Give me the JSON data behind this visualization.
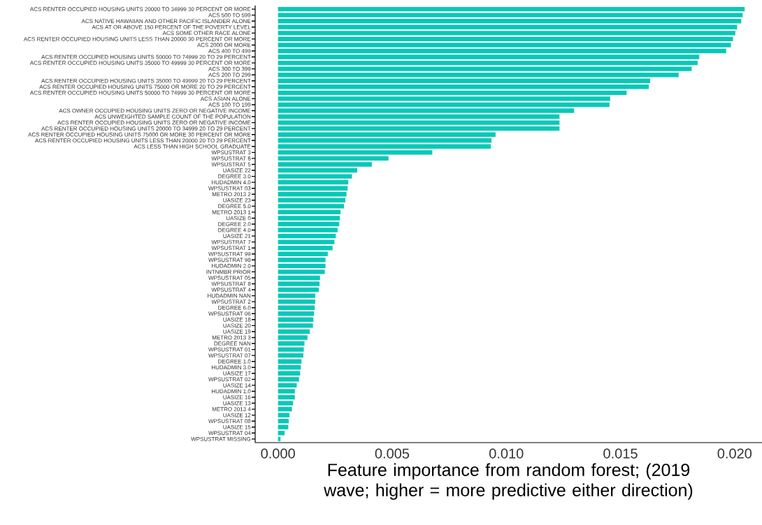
{
  "chart_data": {
    "type": "bar",
    "orientation": "horizontal",
    "xlabel": "Feature importance from random forest; (2019 wave; higher = more predictive either direction)",
    "categories": [
      "ACS RENTER OCCUPIED HOUSING UNITS 20000 TO 34999 30 PERCENT OR MORE",
      "ACS 500 TO 599",
      "ACS NATIVE HAWAIIAN AND OTHER PACIFIC ISLANDER ALONE",
      "ACS AT OR ABOVE 150 PERCENT OF THE POVERTY LEVEL",
      "ACS SOME OTHER RACE ALONE",
      "ACS RENTER OCCUPIED HOUSING UNITS LESS THAN 20000 30 PERCENT OR MORE",
      "ACS 2000 OR MORE",
      "ACS 400 TO 499",
      "ACS RENTER OCCUPIED HOUSING UNITS 50000 TO 74999 20 TO 29 PERCENT",
      "ACS RENTER OCCUPIED HOUSING UNITS 35000 TO 49999 30 PERCENT OR MORE",
      "ACS 300 TO 399",
      "ACS 200 TO 299",
      "ACS RENTER OCCUPIED HOUSING UNITS 35000 TO 49999 20 TO 29 PERCENT",
      "ACS RENTER OCCUPIED HOUSING UNITS 75000 OR MORE 20 TO 29 PERCENT",
      "ACS RENTER OCCUPIED HOUSING UNITS 50000 TO 74999 30 PERCENT OR MORE",
      "ACS ASIAN ALONE",
      "ACS 100 TO 199",
      "ACS OWNER OCCUPIED HOUSING UNITS ZERO OR NEGATIVE INCOME",
      "ACS UNWEIGHTED SAMPLE COUNT OF THE POPULATION",
      "ACS RENTER OCCUPIED HOUSING UNITS ZERO OR NEGATIVE INCOME",
      "ACS RENTER OCCUPIED HOUSING UNITS 20000 TO 34999 20 TO 29 PERCENT",
      "ACS RENTER OCCUPIED HOUSING UNITS 75000 OR MORE 30 PERCENT OR MORE",
      "ACS RENTER OCCUPIED HOUSING UNITS LESS THAN 20000 20 TO 29 PERCENT",
      "ACS LESS THAN HIGH SCHOOL GRADUATE",
      "WPSUSTRAT 3",
      "WPSUSTRAT 6",
      "WPSUSTRAT 5",
      "UASIZE 22",
      "DEGREE 3.0",
      "HUDADMIN 4.0",
      "WPSUSTRAT 03",
      "METRO 2013 2",
      "UASIZE 23",
      "DEGREE 5.0",
      "METRO 2013 1",
      "UASIZE 0",
      "DEGREE 2.0",
      "DEGREE 4.0",
      "UASIZE 21",
      "WPSUSTRAT 7",
      "WPSUSTRAT 1",
      "WPSUSTRAT 99",
      "WPSUSTRAT 98",
      "HUDADMIN 2.0",
      "INTNMBR PRIOR",
      "WPSUSTRAT 05",
      "WPSUSTRAT 8",
      "WPSUSTRAT 4",
      "HUDADMIN NAN",
      "WPSUSTRAT 2",
      "DEGREE 6.0",
      "WPSUSTRAT 06",
      "UASIZE 18",
      "UASIZE 20",
      "UASIZE 19",
      "METRO 2013 3",
      "DEGREE NAN",
      "WPSUSTRAT 01",
      "WPSUSTRAT 07",
      "DEGREE 1.0",
      "HUDADMIN 3.0",
      "UASIZE 17",
      "WPSUSTRAT 02",
      "UASIZE 14",
      "HUDADMIN 1.0",
      "UASIZE 16",
      "UASIZE 13",
      "METRO 2013 4",
      "UASIZE 12",
      "WPSUSTRAT 08",
      "UASIZE 15",
      "WPSUSTRAT 04",
      "WPSUSTRAT MISSING"
    ],
    "values": [
      0.02044,
      0.02035,
      0.02029,
      0.02011,
      0.02003,
      0.01993,
      0.01984,
      0.01963,
      0.01845,
      0.01838,
      0.01812,
      0.01755,
      0.0163,
      0.01624,
      0.01527,
      0.01455,
      0.01452,
      0.01297,
      0.01233,
      0.01233,
      0.01233,
      0.00953,
      0.00935,
      0.00932,
      0.00676,
      0.00484,
      0.00411,
      0.00347,
      0.00324,
      0.00308,
      0.00305,
      0.003,
      0.00295,
      0.00289,
      0.00274,
      0.00271,
      0.00268,
      0.00261,
      0.00253,
      0.00247,
      0.00239,
      0.00218,
      0.00208,
      0.00208,
      0.00205,
      0.00184,
      0.00182,
      0.00179,
      0.00163,
      0.00163,
      0.00161,
      0.00158,
      0.00155,
      0.00153,
      0.00139,
      0.00129,
      0.00116,
      0.00113,
      0.00111,
      0.00103,
      0.001,
      0.00097,
      0.00092,
      0.00082,
      0.00074,
      0.00074,
      0.00066,
      0.00061,
      0.0005,
      0.00047,
      0.00045,
      0.00029,
      0.00011
    ],
    "color": "#06c9b8",
    "xlim": [
      -0.001,
      0.0212
    ],
    "xticks": [
      {
        "value": 0,
        "label": "0.000"
      },
      {
        "value": 0.005,
        "label": "0.005"
      },
      {
        "value": 0.01,
        "label": "0.010"
      },
      {
        "value": 0.015,
        "label": "0.015"
      },
      {
        "value": 0.02,
        "label": "0.020"
      }
    ],
    "grid": false
  }
}
